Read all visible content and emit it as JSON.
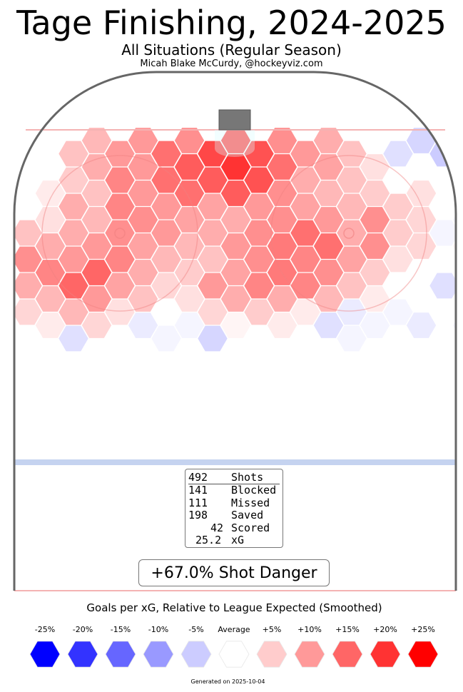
{
  "header": {
    "title": "Tage Finishing, 2024-2025",
    "subtitle": "All Situations (Regular Season)",
    "credit": "Micah Blake McCurdy, @hockeyviz.com"
  },
  "stats": [
    {
      "value": "492",
      "label": "Shots"
    },
    {
      "value": "141",
      "label": "Blocked"
    },
    {
      "value": "111",
      "label": "Missed"
    },
    {
      "value": "198",
      "label": "Saved"
    },
    {
      "value": "42",
      "label": "Scored"
    },
    {
      "value": "25.2",
      "label": "xG"
    }
  ],
  "shot_danger": "+67.0% Shot Danger",
  "legend": {
    "title": "Goals per xG, Relative to League Expected (Smoothed)",
    "items": [
      {
        "label": "-25%",
        "color": "#0000ff"
      },
      {
        "label": "-20%",
        "color": "#3333ff"
      },
      {
        "label": "-15%",
        "color": "#6666ff"
      },
      {
        "label": "-10%",
        "color": "#9999ff"
      },
      {
        "label": "-5%",
        "color": "#ccccff"
      },
      {
        "label": "Average",
        "color": "#ffffff"
      },
      {
        "label": "+5%",
        "color": "#ffcccc"
      },
      {
        "label": "+10%",
        "color": "#ff9999"
      },
      {
        "label": "+15%",
        "color": "#ff6666"
      },
      {
        "label": "+20%",
        "color": "#ff3333"
      },
      {
        "label": "+25%",
        "color": "#ff0000"
      }
    ]
  },
  "footer": "Generated on 2025-10-04",
  "colors": {
    "board": "#666666",
    "goal_line": "#f4b3b3",
    "blue_line": "#c5d3f0",
    "net": "#777777",
    "crease": "#d9fbff"
  },
  "chart_data": {
    "type": "heatmap",
    "title": "Tage Finishing, 2024-2025",
    "scale_min": -25,
    "scale_max": 25,
    "units": "% goals per xG relative to league expected",
    "rows": [
      [
        null,
        7,
        10,
        11,
        17,
        11,
        8,
        0,
        -4,
        null
      ],
      [
        0,
        6,
        10,
        14,
        18,
        17,
        10,
        6,
        -3,
        -5
      ],
      [
        0,
        8,
        10,
        16,
        20,
        14,
        9,
        3,
        0,
        null
      ],
      [
        0,
        5,
        12,
        14,
        16,
        17,
        8,
        6,
        0,
        0
      ],
      [
        2,
        6,
        10,
        14,
        16,
        11,
        7,
        5,
        3,
        null
      ],
      [
        0,
        8,
        12,
        10,
        9,
        10,
        9,
        7,
        5,
        0
      ],
      [
        3,
        7,
        11,
        9,
        8,
        11,
        10,
        11,
        4,
        -1
      ],
      [
        6,
        8,
        11,
        10,
        8,
        11,
        14,
        8,
        5,
        -1
      ],
      [
        8,
        10,
        9,
        7,
        10,
        13,
        14,
        11,
        4,
        1
      ],
      [
        11,
        10,
        12,
        7,
        6,
        11,
        12,
        9,
        3,
        0
      ],
      [
        12,
        15,
        8,
        5,
        9,
        13,
        11,
        5,
        0,
        0
      ],
      [
        8,
        15,
        9,
        4,
        10,
        12,
        12,
        6,
        0,
        -3
      ],
      [
        7,
        10,
        6,
        3,
        8,
        8,
        7,
        2,
        0,
        0
      ],
      [
        4,
        7,
        3,
        0,
        4,
        5,
        2,
        -2,
        -1,
        0
      ],
      [
        2,
        4,
        -2,
        -1,
        1,
        2,
        -3,
        -1,
        -2,
        -1
      ],
      [
        0,
        -3,
        0,
        -1,
        -4,
        0,
        0,
        -1,
        0,
        0
      ]
    ]
  }
}
